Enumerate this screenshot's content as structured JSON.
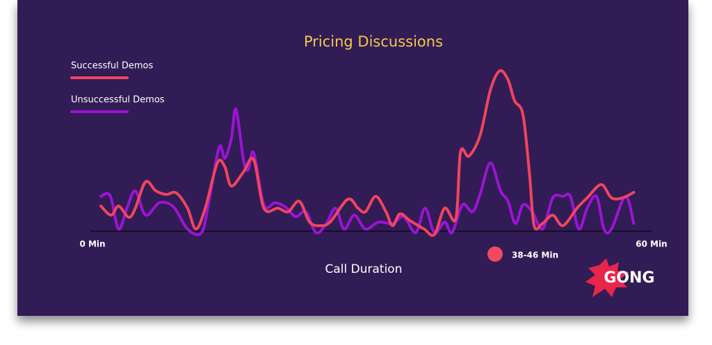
{
  "chart_data": {
    "type": "line",
    "title": "Pricing Discussions",
    "x_label": "Call Duration",
    "xlim": [
      0,
      60
    ],
    "xticks": [
      {
        "value": 0,
        "label": "0 Min"
      },
      {
        "value": 60,
        "label": "60 Min"
      }
    ],
    "ylim": [
      0,
      100
    ],
    "legend": "top-left",
    "annotation": {
      "text": "38-46 Min",
      "color": "#f04a5e"
    },
    "logo": "GONG",
    "series": [
      {
        "name": "Successful Demos",
        "color": "#f0455f",
        "x": [
          0.9,
          2.0,
          2.8,
          3.9,
          4.6,
          5.7,
          6.8,
          7.9,
          9.0,
          10.2,
          11.1,
          12.1,
          13.4,
          14.2,
          14.9,
          16.2,
          17.3,
          18.4,
          19.9,
          21.0,
          22.2,
          23.3,
          24.4,
          25.5,
          27.4,
          28.5,
          29.3,
          30.4,
          31.5,
          32.2,
          33.0,
          34.1,
          35.6,
          36.7,
          37.8,
          39.0,
          39.5,
          40.4,
          41.6,
          42.7,
          43.7,
          44.6,
          45.3,
          46.2,
          46.9,
          47.4,
          48.3,
          49.4,
          50.5,
          52.0,
          53.1,
          54.6,
          55.7,
          56.9,
          58.1
        ],
        "values": [
          15.5,
          9.9,
          15.5,
          8.6,
          14.2,
          30.5,
          24.9,
          22.7,
          23.6,
          14.2,
          1.3,
          14.2,
          42.1,
          39.9,
          27.9,
          36.5,
          44.2,
          14.2,
          14.2,
          12.0,
          18.5,
          5.6,
          3.4,
          5.6,
          19.7,
          14.2,
          12.0,
          21.5,
          12.0,
          3.4,
          10.7,
          6.4,
          1.3,
          -2.1,
          14.2,
          7.7,
          48.9,
          46.4,
          59.2,
          87.1,
          99.1,
          93.6,
          80.7,
          72.1,
          35.6,
          3.4,
          4.7,
          9.9,
          3.4,
          14.2,
          20.6,
          28.8,
          20.6,
          20.6,
          24.0
        ]
      },
      {
        "name": "Unsuccessful Demos",
        "color": "#9b14d4",
        "x": [
          0.9,
          1.9,
          2.8,
          3.7,
          4.6,
          5.7,
          7.2,
          8.7,
          10.2,
          11.7,
          12.5,
          13.6,
          14.2,
          14.9,
          15.4,
          16.2,
          16.7,
          17.3,
          18.4,
          19.6,
          20.7,
          21.8,
          22.9,
          24.0,
          25.1,
          26.1,
          27.0,
          28.1,
          29.3,
          30.7,
          32.2,
          33.4,
          34.7,
          35.7,
          36.7,
          37.8,
          38.6,
          39.7,
          40.8,
          41.6,
          42.7,
          43.8,
          44.6,
          45.4,
          46.2,
          47.2,
          48.3,
          49.4,
          50.5,
          51.3,
          52.2,
          53.1,
          54.1,
          54.9,
          55.7,
          57.2,
          58.1
        ],
        "values": [
          21.5,
          21.9,
          1.3,
          14.2,
          24.9,
          9.9,
          17.6,
          15.0,
          1.3,
          -0.9,
          18.5,
          51.9,
          45.1,
          57.1,
          75.5,
          44.2,
          37.8,
          48.5,
          16.3,
          17.6,
          15.0,
          9.0,
          12.0,
          -0.9,
          4.7,
          14.2,
          1.3,
          9.9,
          1.3,
          5.6,
          4.7,
          9.0,
          -0.9,
          14.2,
          -0.9,
          5.6,
          -0.9,
          16.3,
          12.0,
          22.7,
          42.1,
          24.9,
          18.5,
          4.7,
          16.3,
          12.0,
          1.3,
          20.6,
          21.5,
          21.5,
          1.3,
          14.2,
          21.5,
          1.3,
          1.3,
          21.5,
          4.7
        ]
      }
    ]
  }
}
